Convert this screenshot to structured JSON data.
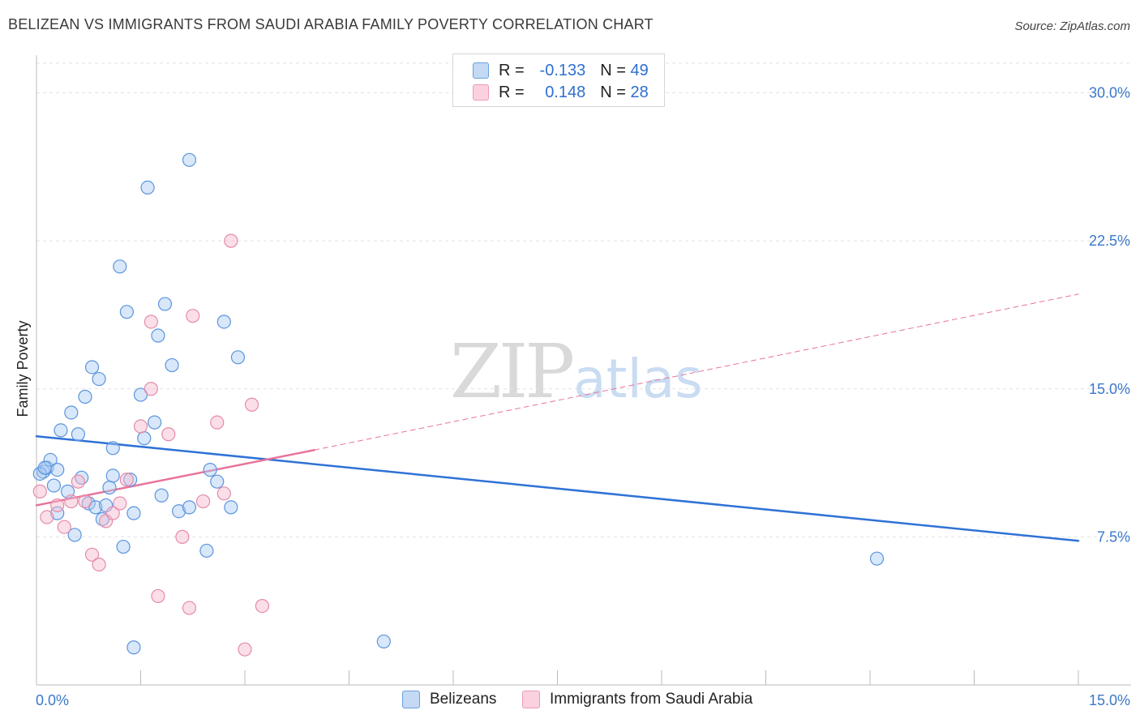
{
  "title": "BELIZEAN VS IMMIGRANTS FROM SAUDI ARABIA FAMILY POVERTY CORRELATION CHART",
  "source": "Source: ZipAtlas.com",
  "watermark": {
    "zip": "ZIP",
    "atlas": "atlas"
  },
  "legend_top": {
    "rows": [
      {
        "r_label": "R =",
        "r_value": "-0.133",
        "n_label": "N =",
        "n_value": "49",
        "color": "#a9c9f1"
      },
      {
        "r_label": "R =",
        "r_value": "0.148",
        "n_label": "N =",
        "n_value": "28",
        "color": "#f7b8cd"
      }
    ]
  },
  "legend_bottom": [
    {
      "label": "Belizeans",
      "color": "#a9c9f1"
    },
    {
      "label": "Immigrants from Saudi Arabia",
      "color": "#f7b8cd"
    }
  ],
  "chart_data": {
    "type": "scatter",
    "title": "BELIZEAN VS IMMIGRANTS FROM SAUDI ARABIA FAMILY POVERTY CORRELATION CHART",
    "xlabel": "",
    "ylabel": "Family Poverty",
    "xlim": [
      0,
      15
    ],
    "ylim": [
      0,
      31.5
    ],
    "x_tick_labels": [
      "0.0%",
      "15.0%"
    ],
    "y_tick_labels": [
      "7.5%",
      "15.0%",
      "22.5%",
      "30.0%"
    ],
    "y_ticks": [
      7.5,
      15.0,
      22.5,
      30.0
    ],
    "grid": true,
    "colors": {
      "belizean": "#2f72d6",
      "saudi": "#e8729b"
    },
    "series": [
      {
        "name": "Belizeans",
        "color": "#a9c9f1",
        "stroke": "#5b95dd",
        "points": [
          [
            0.1,
            10.8
          ],
          [
            0.15,
            11.0
          ],
          [
            0.2,
            11.4
          ],
          [
            0.25,
            10.1
          ],
          [
            0.3,
            10.9
          ],
          [
            0.3,
            8.7
          ],
          [
            0.35,
            12.9
          ],
          [
            0.45,
            9.8
          ],
          [
            0.5,
            13.8
          ],
          [
            0.55,
            7.6
          ],
          [
            0.6,
            12.7
          ],
          [
            0.65,
            10.5
          ],
          [
            0.7,
            14.6
          ],
          [
            0.75,
            9.2
          ],
          [
            0.8,
            16.1
          ],
          [
            0.85,
            9.0
          ],
          [
            0.9,
            15.5
          ],
          [
            0.95,
            8.4
          ],
          [
            1.0,
            9.1
          ],
          [
            1.05,
            10.0
          ],
          [
            1.1,
            10.6
          ],
          [
            1.1,
            12.0
          ],
          [
            1.2,
            21.2
          ],
          [
            1.25,
            7.0
          ],
          [
            1.3,
            18.9
          ],
          [
            1.35,
            10.4
          ],
          [
            1.4,
            8.7
          ],
          [
            1.5,
            14.7
          ],
          [
            1.55,
            12.5
          ],
          [
            1.6,
            25.2
          ],
          [
            1.7,
            13.3
          ],
          [
            1.75,
            17.7
          ],
          [
            1.8,
            9.6
          ],
          [
            1.85,
            19.3
          ],
          [
            1.95,
            16.2
          ],
          [
            2.05,
            8.8
          ],
          [
            2.2,
            9.0
          ],
          [
            2.2,
            26.6
          ],
          [
            2.45,
            6.8
          ],
          [
            2.5,
            10.9
          ],
          [
            2.6,
            10.3
          ],
          [
            2.7,
            18.4
          ],
          [
            2.8,
            9.0
          ],
          [
            2.9,
            16.6
          ],
          [
            1.4,
            1.9
          ],
          [
            5.0,
            2.2
          ],
          [
            12.1,
            6.4
          ],
          [
            0.05,
            10.7
          ],
          [
            0.12,
            11.0
          ]
        ]
      },
      {
        "name": "Immigrants from Saudi Arabia",
        "color": "#f7b8cd",
        "stroke": "#e58aab",
        "points": [
          [
            0.05,
            9.8
          ],
          [
            0.15,
            8.5
          ],
          [
            0.3,
            9.1
          ],
          [
            0.4,
            8.0
          ],
          [
            0.5,
            9.3
          ],
          [
            0.6,
            10.3
          ],
          [
            0.7,
            9.3
          ],
          [
            0.8,
            6.6
          ],
          [
            0.9,
            6.1
          ],
          [
            1.0,
            8.3
          ],
          [
            1.1,
            8.7
          ],
          [
            1.2,
            9.2
          ],
          [
            1.3,
            10.4
          ],
          [
            1.5,
            13.1
          ],
          [
            1.65,
            15.0
          ],
          [
            1.65,
            18.4
          ],
          [
            1.75,
            4.5
          ],
          [
            1.9,
            12.7
          ],
          [
            2.1,
            7.5
          ],
          [
            2.2,
            3.9
          ],
          [
            2.25,
            18.7
          ],
          [
            2.4,
            9.3
          ],
          [
            2.6,
            13.3
          ],
          [
            2.7,
            9.7
          ],
          [
            2.8,
            22.5
          ],
          [
            3.0,
            1.8
          ],
          [
            3.1,
            14.2
          ],
          [
            3.25,
            4.0
          ]
        ]
      }
    ],
    "trend_lines": [
      {
        "series": "Belizeans",
        "x0": 0,
        "y0": 12.6,
        "x1": 15,
        "y1": 7.3,
        "style": "solid"
      },
      {
        "series": "Immigrants from Saudi Arabia",
        "x0": 0,
        "y0": 9.1,
        "x1": 4.0,
        "y1": 11.9,
        "style": "solid"
      },
      {
        "series": "Immigrants from Saudi Arabia",
        "x0": 4.0,
        "y0": 11.9,
        "x1": 15,
        "y1": 19.8,
        "style": "dashed"
      }
    ]
  }
}
